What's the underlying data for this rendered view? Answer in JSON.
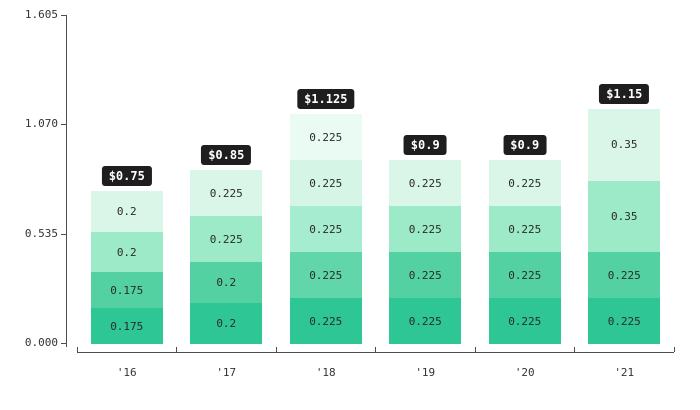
{
  "chart_data": {
    "type": "bar",
    "stacked": true,
    "title": "",
    "xlabel": "",
    "ylabel": "",
    "grid": false,
    "legend": "none",
    "background_color": "#ffffff",
    "axis_color": "#4d4d4d",
    "label_color": "#333333",
    "segment_label_color": "#2b2b2b",
    "badge_bg_color": "#1e1e1e",
    "badge_text_color": "#ffffff",
    "ylim": [
      0,
      1.605
    ],
    "y_axis": {
      "tick_labels": [
        "0.000",
        "0.535",
        "1.070",
        "1.605"
      ],
      "tick_values": [
        0,
        0.535,
        1.07,
        1.605
      ]
    },
    "categories": [
      "'16",
      "'17",
      "'18",
      "'19",
      "'20",
      "'21"
    ],
    "bars": [
      {
        "category": "'16",
        "total": 0.75,
        "total_label": "$0.75",
        "segments": [
          {
            "value": 0.175,
            "label": "0.175",
            "color": "#2ec695"
          },
          {
            "value": 0.175,
            "label": "0.175",
            "color": "#54d1a3"
          },
          {
            "value": 0.2,
            "label": "0.2",
            "color": "#9ceac7"
          },
          {
            "value": 0.2,
            "label": "0.2",
            "color": "#d9f6e9"
          }
        ]
      },
      {
        "category": "'17",
        "total": 0.85,
        "total_label": "$0.85",
        "segments": [
          {
            "value": 0.2,
            "label": "0.2",
            "color": "#2ec695"
          },
          {
            "value": 0.2,
            "label": "0.2",
            "color": "#54d1a3"
          },
          {
            "value": 0.225,
            "label": "0.225",
            "color": "#9ceac7"
          },
          {
            "value": 0.225,
            "label": "0.225",
            "color": "#d9f6e9"
          }
        ]
      },
      {
        "category": "'18",
        "total": 1.125,
        "total_label": "$1.125",
        "segments": [
          {
            "value": 0.225,
            "label": "0.225",
            "color": "#2ec695"
          },
          {
            "value": 0.225,
            "label": "0.225",
            "color": "#60d6aa"
          },
          {
            "value": 0.225,
            "label": "0.225",
            "color": "#a6ecd0"
          },
          {
            "value": 0.225,
            "label": "0.225",
            "color": "#d5f5e7"
          },
          {
            "value": 0.225,
            "label": "0.225",
            "color": "#eafbf3"
          }
        ]
      },
      {
        "category": "'19",
        "total": 0.9,
        "total_label": "$0.9",
        "segments": [
          {
            "value": 0.225,
            "label": "0.225",
            "color": "#2ec695"
          },
          {
            "value": 0.225,
            "label": "0.225",
            "color": "#54d1a3"
          },
          {
            "value": 0.225,
            "label": "0.225",
            "color": "#9ceac7"
          },
          {
            "value": 0.225,
            "label": "0.225",
            "color": "#d9f6e9"
          }
        ]
      },
      {
        "category": "'20",
        "total": 0.9,
        "total_label": "$0.9",
        "segments": [
          {
            "value": 0.225,
            "label": "0.225",
            "color": "#2ec695"
          },
          {
            "value": 0.225,
            "label": "0.225",
            "color": "#54d1a3"
          },
          {
            "value": 0.225,
            "label": "0.225",
            "color": "#9ceac7"
          },
          {
            "value": 0.225,
            "label": "0.225",
            "color": "#d9f6e9"
          }
        ]
      },
      {
        "category": "'21",
        "total": 1.15,
        "total_label": "$1.15",
        "segments": [
          {
            "value": 0.225,
            "label": "0.225",
            "color": "#2ec695"
          },
          {
            "value": 0.225,
            "label": "0.225",
            "color": "#54d1a3"
          },
          {
            "value": 0.35,
            "label": "0.35",
            "color": "#9ceac7"
          },
          {
            "value": 0.35,
            "label": "0.35",
            "color": "#d9f6e9"
          }
        ]
      }
    ]
  }
}
